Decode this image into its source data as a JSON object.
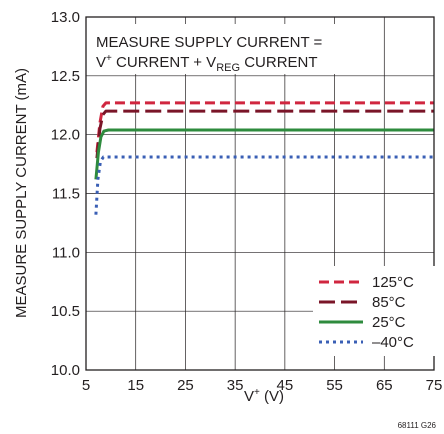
{
  "chart_data": {
    "type": "line",
    "xlabel": "V+ (V)",
    "ylabel": "MEASURE SUPPLY CURRENT (mA)",
    "xlim": [
      5,
      75
    ],
    "ylim": [
      10.0,
      13.0
    ],
    "x_ticks": [
      "5",
      "15",
      "25",
      "35",
      "45",
      "55",
      "65",
      "75"
    ],
    "y_ticks": [
      "10.0",
      "10.5",
      "11.0",
      "11.5",
      "12.0",
      "12.5",
      "13.0"
    ],
    "grid": true,
    "legend_position": "bottom-right",
    "annotation": {
      "line1": "MEASURE SUPPLY CURRENT =",
      "line2_parts": [
        "V",
        "+",
        " CURRENT + V",
        "REG",
        " CURRENT"
      ]
    },
    "figure_id": "68111 G26",
    "series": [
      {
        "name": "125°C",
        "color": "#d0263f",
        "dash": "dashed",
        "x": [
          7.2,
          7.8,
          8.4,
          9.0,
          10,
          15,
          20,
          30,
          40,
          50,
          60,
          70,
          75
        ],
        "y": [
          11.85,
          12.1,
          12.24,
          12.27,
          12.27,
          12.27,
          12.27,
          12.27,
          12.27,
          12.27,
          12.27,
          12.27,
          12.27
        ]
      },
      {
        "name": "85°C",
        "color": "#7a1528",
        "dash": "longdash",
        "x": [
          7.2,
          7.8,
          8.4,
          9.0,
          10,
          15,
          20,
          30,
          40,
          50,
          60,
          70,
          75
        ],
        "y": [
          11.8,
          12.05,
          12.17,
          12.2,
          12.2,
          12.2,
          12.2,
          12.2,
          12.2,
          12.2,
          12.2,
          12.2,
          12.2
        ]
      },
      {
        "name": "25°C",
        "color": "#2e8b3e",
        "dash": "solid",
        "x": [
          7.0,
          7.5,
          8.0,
          8.6,
          9.5,
          15,
          20,
          30,
          40,
          50,
          60,
          70,
          75
        ],
        "y": [
          11.62,
          11.85,
          11.98,
          12.03,
          12.04,
          12.04,
          12.04,
          12.04,
          12.04,
          12.04,
          12.04,
          12.04,
          12.04
        ]
      },
      {
        "name": "–40°C",
        "color": "#3a5fb5",
        "dash": "dotted",
        "x": [
          7.0,
          7.4,
          7.9,
          8.5,
          10,
          15,
          20,
          30,
          40,
          50,
          60,
          70,
          75
        ],
        "y": [
          11.32,
          11.62,
          11.77,
          11.81,
          11.81,
          11.81,
          11.81,
          11.81,
          11.81,
          11.81,
          11.81,
          11.81,
          11.81
        ]
      }
    ]
  }
}
